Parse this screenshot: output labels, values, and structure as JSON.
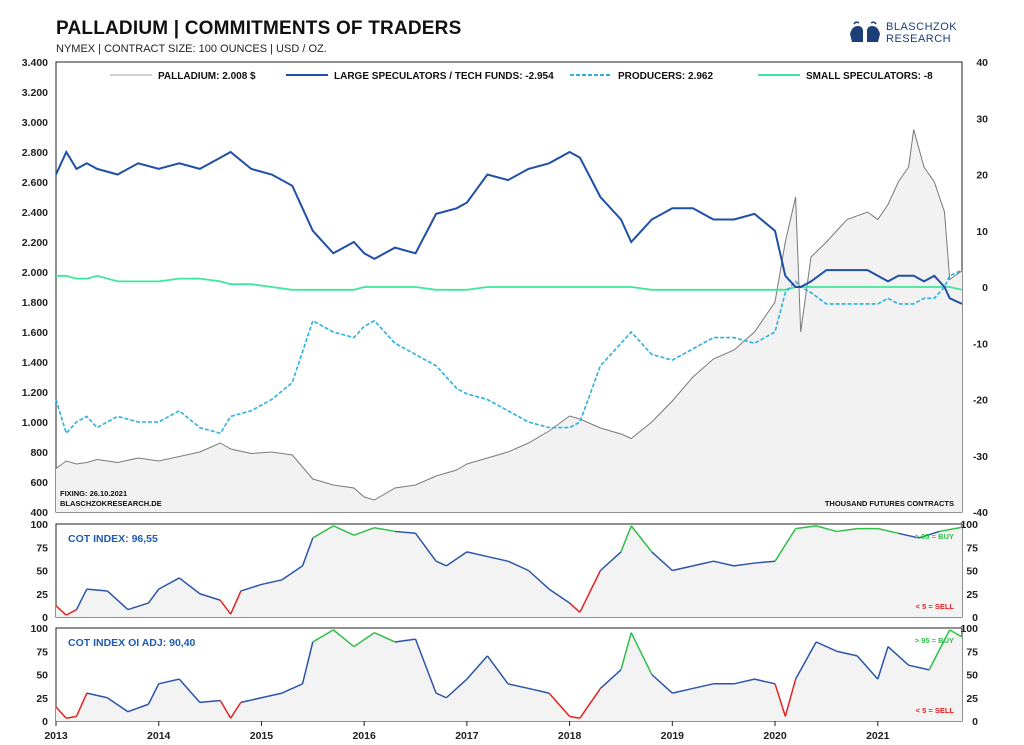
{
  "header": {
    "title": "PALLADIUM | COMMITMENTS OF TRADERS",
    "subtitle": "NYMEX | CONTRACT SIZE: 100 OUNCES | USD / OZ.",
    "logo_line1": "BLASCHZOK",
    "logo_line2": "RESEARCH"
  },
  "notes": {
    "fixing": "FIXING: 26.10.2021",
    "source": "BLASCHZOKRESEARCH.DE",
    "units": "THOUSAND FUTURES CONTRACTS"
  },
  "colors": {
    "price": "#7a7a7a",
    "large": "#1f4fa6",
    "producers": "#2bb0e0",
    "small": "#3de89a",
    "cot_line": "#2a55a8",
    "buy": "#2fbf4a",
    "sell": "#e52222"
  },
  "chart_data": [
    {
      "type": "line",
      "title": "PALLADIUM | COMMITMENTS OF TRADERS",
      "x": [
        2013.0,
        2013.1,
        2013.2,
        2013.3,
        2013.4,
        2013.6,
        2013.8,
        2014.0,
        2014.2,
        2014.4,
        2014.6,
        2014.7,
        2014.9,
        2015.1,
        2015.3,
        2015.5,
        2015.7,
        2015.9,
        2016.0,
        2016.1,
        2016.3,
        2016.5,
        2016.7,
        2016.9,
        2017.0,
        2017.2,
        2017.4,
        2017.6,
        2017.8,
        2018.0,
        2018.1,
        2018.3,
        2018.5,
        2018.6,
        2018.8,
        2019.0,
        2019.2,
        2019.4,
        2019.6,
        2019.8,
        2020.0,
        2020.1,
        2020.2,
        2020.25,
        2020.35,
        2020.5,
        2020.7,
        2020.9,
        2021.0,
        2021.1,
        2021.2,
        2021.3,
        2021.35,
        2021.45,
        2021.55,
        2021.65,
        2021.7,
        2021.82
      ],
      "y_left_range": [
        400,
        3400
      ],
      "y_right_range": [
        -40,
        40
      ],
      "y_left_ticks": [
        "3.400",
        "3.200",
        "3.000",
        "2.800",
        "2.600",
        "2.400",
        "2.200",
        "2.000",
        "1.800",
        "1.600",
        "1.400",
        "1.200",
        "1.000",
        "800",
        "600",
        "400"
      ],
      "y_right_ticks": [
        "40",
        "30",
        "20",
        "10",
        "0",
        "-10",
        "-20",
        "-30",
        "-40"
      ],
      "series": [
        {
          "name": "PALLADIUM: 2.008 $",
          "axis": "left",
          "values": [
            690,
            740,
            720,
            730,
            750,
            730,
            760,
            740,
            770,
            800,
            860,
            820,
            790,
            800,
            780,
            620,
            580,
            560,
            500,
            480,
            560,
            580,
            640,
            680,
            720,
            760,
            800,
            860,
            940,
            1040,
            1020,
            960,
            920,
            890,
            1000,
            1140,
            1300,
            1420,
            1480,
            1600,
            1800,
            2200,
            2500,
            1600,
            2100,
            2200,
            2350,
            2400,
            2350,
            2450,
            2600,
            2700,
            2950,
            2700,
            2600,
            2400,
            1950,
            2008
          ]
        },
        {
          "name": "LARGE SPECULATORS / TECH FUNDS: -2.954",
          "axis": "right",
          "values": [
            20,
            24,
            21,
            22,
            21,
            20,
            22,
            21,
            22,
            21,
            23,
            24,
            21,
            20,
            18,
            10,
            6,
            8,
            6,
            5,
            7,
            6,
            13,
            14,
            15,
            20,
            19,
            21,
            22,
            24,
            23,
            16,
            12,
            8,
            12,
            14,
            14,
            12,
            12,
            13,
            10,
            2,
            0,
            0,
            1,
            3,
            3,
            3,
            2,
            1,
            2,
            2,
            2,
            1,
            2,
            0,
            -2,
            -3
          ]
        },
        {
          "name": "PRODUCERS: 2.962",
          "axis": "right",
          "values": [
            -20,
            -26,
            -24,
            -23,
            -25,
            -23,
            -24,
            -24,
            -22,
            -25,
            -26,
            -23,
            -22,
            -20,
            -17,
            -6,
            -8,
            -9,
            -7,
            -6,
            -10,
            -12,
            -14,
            -18,
            -19,
            -20,
            -22,
            -24,
            -25,
            -25,
            -24,
            -14,
            -10,
            -8,
            -12,
            -13,
            -11,
            -9,
            -9,
            -10,
            -8,
            -1,
            1,
            0,
            -1,
            -3,
            -3,
            -3,
            -3,
            -2,
            -3,
            -3,
            -3,
            -2,
            -2,
            0,
            2,
            3
          ]
        },
        {
          "name": "SMALL SPECULATORS: -8",
          "axis": "right",
          "values": [
            2,
            2,
            1.5,
            1.5,
            2,
            1,
            1,
            1,
            1.5,
            1.5,
            1,
            0.5,
            0.5,
            0,
            -0.5,
            -0.5,
            -0.5,
            -0.5,
            0,
            0,
            0,
            0,
            -0.5,
            -0.5,
            -0.5,
            0,
            0,
            0,
            0,
            0,
            0,
            0,
            0,
            0,
            -0.5,
            -0.5,
            -0.5,
            -0.5,
            -0.5,
            -0.5,
            -0.5,
            -0.5,
            0,
            0,
            0,
            0,
            0,
            0,
            0,
            0,
            0,
            0,
            0,
            0,
            0,
            0,
            0,
            -0.5
          ]
        }
      ],
      "x_tick_labels": [
        "2013",
        "2014",
        "2015",
        "2016",
        "2017",
        "2018",
        "2019",
        "2020",
        "2021"
      ],
      "grid": false,
      "legend": "top"
    },
    {
      "type": "line",
      "title": "COT INDEX: 96,55",
      "x": [
        2013.0,
        2013.1,
        2013.2,
        2013.3,
        2013.5,
        2013.7,
        2013.9,
        2014.0,
        2014.2,
        2014.4,
        2014.6,
        2014.7,
        2014.8,
        2015.0,
        2015.2,
        2015.4,
        2015.5,
        2015.7,
        2015.9,
        2016.1,
        2016.3,
        2016.5,
        2016.7,
        2016.8,
        2017.0,
        2017.2,
        2017.4,
        2017.6,
        2017.8,
        2018.0,
        2018.1,
        2018.3,
        2018.5,
        2018.6,
        2018.8,
        2019.0,
        2019.2,
        2019.4,
        2019.6,
        2019.8,
        2020.0,
        2020.2,
        2020.4,
        2020.6,
        2020.8,
        2021.0,
        2021.2,
        2021.4,
        2021.6,
        2021.82
      ],
      "values": [
        12,
        2,
        8,
        30,
        28,
        8,
        15,
        30,
        42,
        25,
        18,
        3,
        28,
        35,
        40,
        55,
        85,
        98,
        88,
        96,
        92,
        90,
        60,
        55,
        70,
        65,
        60,
        50,
        30,
        15,
        5,
        50,
        70,
        98,
        70,
        50,
        55,
        60,
        55,
        58,
        60,
        95,
        98,
        92,
        95,
        95,
        90,
        85,
        92,
        96.55
      ],
      "ylim": [
        0,
        100
      ],
      "y_ticks": [
        "100",
        "75",
        "50",
        "25",
        "0"
      ],
      "annotations": [
        "> 95 = BUY",
        "< 5 = SELL"
      ]
    },
    {
      "type": "line",
      "title": "COT INDEX OI ADJ: 90,40",
      "x": [
        2013.0,
        2013.1,
        2013.2,
        2013.3,
        2013.5,
        2013.7,
        2013.9,
        2014.0,
        2014.2,
        2014.4,
        2014.6,
        2014.7,
        2014.8,
        2015.0,
        2015.2,
        2015.4,
        2015.5,
        2015.7,
        2015.9,
        2016.1,
        2016.3,
        2016.5,
        2016.7,
        2016.8,
        2017.0,
        2017.2,
        2017.4,
        2017.6,
        2017.8,
        2018.0,
        2018.1,
        2018.3,
        2018.5,
        2018.6,
        2018.8,
        2019.0,
        2019.2,
        2019.4,
        2019.6,
        2019.8,
        2020.0,
        2020.1,
        2020.2,
        2020.4,
        2020.6,
        2020.8,
        2021.0,
        2021.1,
        2021.3,
        2021.5,
        2021.7,
        2021.82
      ],
      "values": [
        15,
        3,
        5,
        30,
        25,
        10,
        18,
        40,
        45,
        20,
        22,
        3,
        20,
        25,
        30,
        40,
        85,
        98,
        80,
        95,
        85,
        88,
        30,
        25,
        45,
        70,
        40,
        35,
        30,
        5,
        3,
        35,
        55,
        95,
        50,
        30,
        35,
        40,
        40,
        45,
        40,
        5,
        45,
        85,
        75,
        70,
        45,
        80,
        60,
        55,
        98,
        90.4
      ],
      "ylim": [
        0,
        100
      ],
      "y_ticks": [
        "100",
        "75",
        "50",
        "25",
        "0"
      ],
      "annotations": [
        "> 95 = BUY",
        "< 5 = SELL"
      ]
    }
  ]
}
